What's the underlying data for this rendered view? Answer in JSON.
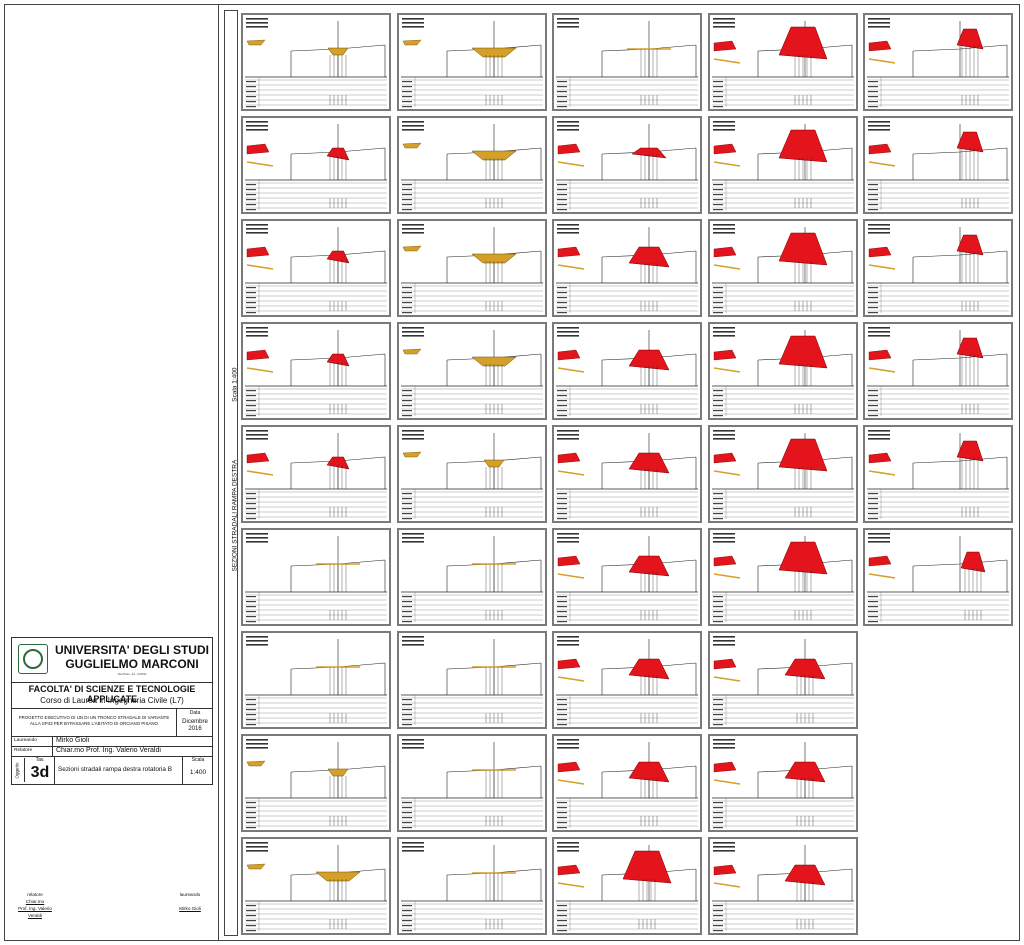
{
  "title_block": {
    "university_line1": "UNIVERSITA' DEGLI STUDI",
    "university_line2": "GUGLIELMO MARCONI",
    "address": "Via Plinio, 44 - ROMA",
    "faculty": "FACOLTA' DI SCIENZE E TECNOLOGIE APPLICATE",
    "course": "Corso di Laurea in Ingegneria Civile (L7)",
    "project": "PROGETTO ESECUTIVO DI UN DI UN TRONCO STRADALE DI VARIANTE ALLA SP43 PER BYPASSARE L'ABITATO DI ORCIANO PISANO",
    "date_label": "Data",
    "date_value": "Dicembre 2016",
    "student_label": "Laureando",
    "student_value": "Mirko Gioli",
    "advisor_label": "Relatore",
    "advisor_value": "Chiar.mo Prof. Ing. Valerio Veraldi",
    "subject_label": "Oggetto",
    "table_label": "Tav.",
    "table_value": "3d",
    "description": "Sezioni stradali rampa destra rotatoria B",
    "scale_label": "Scala",
    "scale_value": "1:400",
    "logo_icon": "university-seal-icon"
  },
  "signatures": {
    "left_role": "relatore",
    "left_line1": "Chiar.mo",
    "left_line2": "Prof. Ing. Valerio Veraldi",
    "right_role": "laureando",
    "right_name": "Mirko Gioli"
  },
  "side_strip": {
    "title": "SEZIONI STRADALI RAMPA DESTRA",
    "scale": "Scala 1:400"
  },
  "colors": {
    "fill_red": "#e3141b",
    "cut_gold": "#d4a02a",
    "line": "#222222",
    "frame": "#7a7a7a"
  },
  "sections": {
    "columns": 5,
    "rows": [
      [
        "cut-sm",
        "cut",
        "flat",
        "fill-lg",
        "fill"
      ],
      [
        "fill-sm",
        "cut",
        "fill-flat",
        "fill-lg",
        "fill"
      ],
      [
        "fill-sm",
        "cut",
        "fill-md",
        "fill-lg",
        "fill"
      ],
      [
        "fill-sm",
        "cut",
        "fill-md",
        "fill-lg",
        "fill"
      ],
      [
        "fill-sm",
        "cut-sm",
        "fill-md",
        "fill-lg",
        "fill"
      ],
      [
        "flat",
        "flat",
        "fill-md",
        "fill-lg",
        "fill-half"
      ],
      [
        "flat",
        "flat",
        "fill-md",
        "fill-md"
      ],
      [
        "cut-sm",
        "flat",
        "fill-md",
        "fill-md"
      ],
      [
        "cut",
        "flat",
        "fill-lg",
        "fill-md"
      ]
    ]
  }
}
